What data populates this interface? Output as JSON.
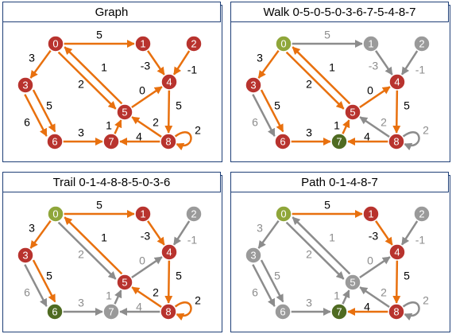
{
  "colors": {
    "orange": "#e8700e",
    "gray": "#8c8c8c",
    "node_red": "#b8332e",
    "node_gray": "#9a9a9a",
    "node_olive": "#8fa63a",
    "node_dark_green": "#4f6b22",
    "border": "#1f3f77"
  },
  "nodes": [
    "0",
    "1",
    "2",
    "3",
    "4",
    "5",
    "6",
    "7",
    "8"
  ],
  "edges": [
    {
      "id": "0-1",
      "from": "0",
      "to": "1",
      "weight": "5"
    },
    {
      "id": "0-3",
      "from": "0",
      "to": "3",
      "weight": "3"
    },
    {
      "id": "0-5",
      "from": "0",
      "to": "5",
      "weight": "2"
    },
    {
      "id": "5-0",
      "from": "5",
      "to": "0",
      "weight": "1"
    },
    {
      "id": "1-4",
      "from": "1",
      "to": "4",
      "weight": "-3"
    },
    {
      "id": "2-4",
      "from": "2",
      "to": "4",
      "weight": "-1"
    },
    {
      "id": "3-6a",
      "from": "3",
      "to": "6",
      "weight": "5"
    },
    {
      "id": "3-6b",
      "from": "3",
      "to": "6",
      "weight": "6"
    },
    {
      "id": "5-4",
      "from": "5",
      "to": "4",
      "weight": "0"
    },
    {
      "id": "4-8",
      "from": "4",
      "to": "8",
      "weight": "5"
    },
    {
      "id": "6-7",
      "from": "6",
      "to": "7",
      "weight": "3"
    },
    {
      "id": "7-5",
      "from": "7",
      "to": "5",
      "weight": "1"
    },
    {
      "id": "8-7",
      "from": "8",
      "to": "7",
      "weight": "4"
    },
    {
      "id": "8-5",
      "from": "8",
      "to": "5",
      "weight": "2"
    },
    {
      "id": "8-8",
      "from": "8",
      "to": "8",
      "weight": "2"
    }
  ],
  "panels": [
    {
      "title": "Graph",
      "node_colors": {
        "0": "red",
        "1": "red",
        "2": "red",
        "3": "red",
        "4": "red",
        "5": "red",
        "6": "red",
        "7": "red",
        "8": "red"
      },
      "edge_colors": {
        "0-1": "orange",
        "0-3": "orange",
        "0-5": "orange",
        "5-0": "orange",
        "1-4": "orange",
        "2-4": "orange",
        "3-6a": "orange",
        "3-6b": "orange",
        "5-4": "orange",
        "4-8": "orange",
        "6-7": "orange",
        "7-5": "orange",
        "8-7": "orange",
        "8-5": "orange",
        "8-8": "orange"
      }
    },
    {
      "title": "Walk 0-5-0-5-0-3-6-7-5-4-8-7",
      "node_colors": {
        "0": "olive",
        "1": "gray",
        "2": "gray",
        "3": "red",
        "4": "red",
        "5": "red",
        "6": "red",
        "7": "darkgreen",
        "8": "red"
      },
      "edge_colors": {
        "0-1": "gray",
        "0-3": "orange",
        "0-5": "orange",
        "5-0": "orange",
        "1-4": "gray",
        "2-4": "gray",
        "3-6a": "orange",
        "3-6b": "gray",
        "5-4": "orange",
        "4-8": "orange",
        "6-7": "orange",
        "7-5": "orange",
        "8-7": "orange",
        "8-5": "gray",
        "8-8": "gray"
      }
    },
    {
      "title": "Trail 0-1-4-8-8-5-0-3-6",
      "node_colors": {
        "0": "olive",
        "1": "red",
        "2": "gray",
        "3": "red",
        "4": "red",
        "5": "red",
        "6": "darkgreen",
        "7": "gray",
        "8": "red"
      },
      "edge_colors": {
        "0-1": "orange",
        "0-3": "orange",
        "0-5": "gray",
        "5-0": "orange",
        "1-4": "orange",
        "2-4": "gray",
        "3-6a": "orange",
        "3-6b": "gray",
        "5-4": "gray",
        "4-8": "orange",
        "6-7": "gray",
        "7-5": "gray",
        "8-7": "gray",
        "8-5": "orange",
        "8-8": "orange"
      }
    },
    {
      "title": "Path 0-1-4-8-7",
      "node_colors": {
        "0": "olive",
        "1": "red",
        "2": "gray",
        "3": "gray",
        "4": "red",
        "5": "gray",
        "6": "gray",
        "7": "darkgreen",
        "8": "red"
      },
      "edge_colors": {
        "0-1": "orange",
        "0-3": "gray",
        "0-5": "gray",
        "5-0": "gray",
        "1-4": "orange",
        "2-4": "gray",
        "3-6a": "gray",
        "3-6b": "gray",
        "5-4": "gray",
        "4-8": "orange",
        "6-7": "gray",
        "7-5": "gray",
        "8-7": "orange",
        "8-5": "gray",
        "8-8": "gray"
      }
    }
  ]
}
